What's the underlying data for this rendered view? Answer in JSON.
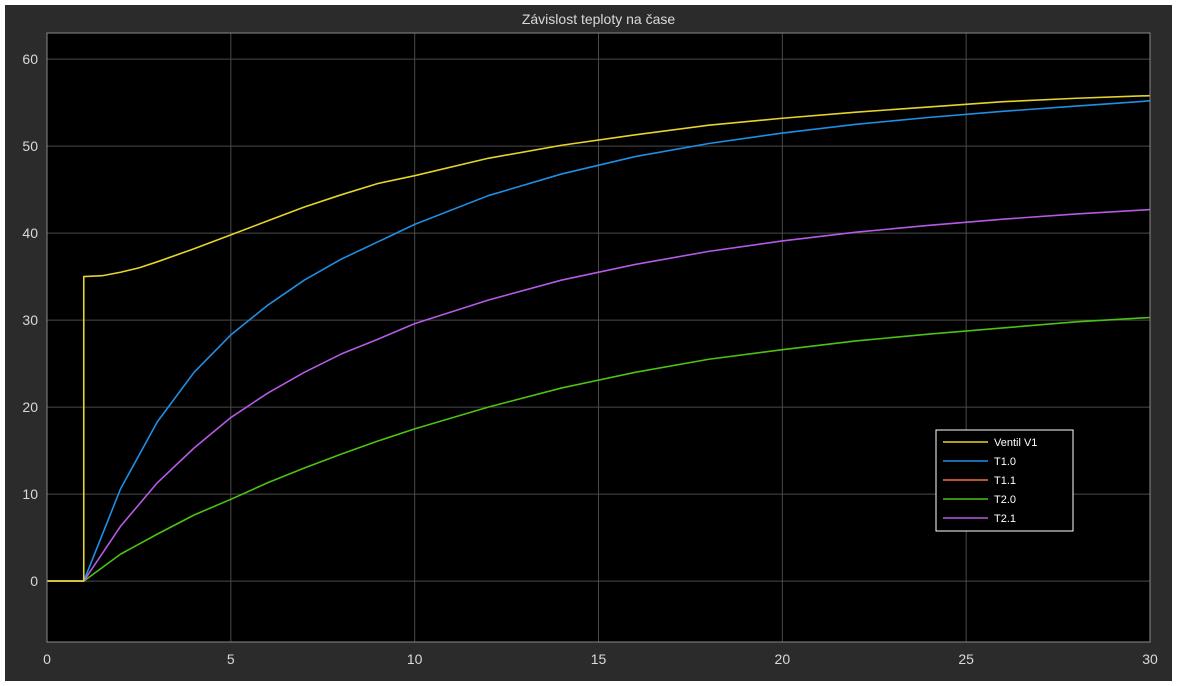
{
  "chart_data": {
    "type": "line",
    "title": "Závislost teploty na čase",
    "xlabel": "",
    "ylabel": "",
    "xlim": [
      0,
      30
    ],
    "ylim": [
      -7,
      63
    ],
    "xticks": [
      0,
      5,
      10,
      15,
      20,
      25,
      30
    ],
    "yticks": [
      0,
      10,
      20,
      30,
      40,
      50,
      60
    ],
    "grid": true,
    "legend_position": "bottom-right",
    "background": "#000000",
    "series": [
      {
        "name": "Ventil V1",
        "color": "#e6d42a",
        "x": [
          0,
          1,
          1,
          1.5,
          2,
          2.5,
          3,
          4,
          5,
          6,
          7,
          8,
          9,
          10,
          12,
          14,
          16,
          18,
          20,
          22,
          24,
          26,
          28,
          30
        ],
        "y": [
          0,
          0,
          35,
          35.1,
          35.5,
          36,
          36.7,
          38.2,
          39.8,
          41.4,
          43,
          44.4,
          45.7,
          46.6,
          48.6,
          50.1,
          51.3,
          52.4,
          53.2,
          53.9,
          54.5,
          55.1,
          55.5,
          55.8
        ]
      },
      {
        "name": "T1.0",
        "color": "#1f8fe5",
        "x": [
          0,
          1,
          2,
          3,
          4,
          5,
          6,
          7,
          8,
          9,
          10,
          12,
          14,
          16,
          18,
          20,
          22,
          24,
          26,
          28,
          30
        ],
        "y": [
          0,
          0,
          10.6,
          18.3,
          24,
          28.3,
          31.7,
          34.6,
          37,
          39,
          41,
          44.3,
          46.8,
          48.8,
          50.3,
          51.5,
          52.5,
          53.3,
          54,
          54.6,
          55.2
        ]
      },
      {
        "name": "T1.1",
        "color": "#ff6a3d",
        "x": [],
        "y": []
      },
      {
        "name": "T2.0",
        "color": "#4cc214",
        "x": [
          0,
          1,
          2,
          3,
          4,
          5,
          6,
          7,
          8,
          9,
          10,
          12,
          14,
          16,
          18,
          20,
          22,
          24,
          26,
          28,
          30
        ],
        "y": [
          0,
          0,
          3.1,
          5.4,
          7.6,
          9.4,
          11.3,
          13,
          14.6,
          16.1,
          17.5,
          20,
          22.2,
          24,
          25.5,
          26.6,
          27.6,
          28.4,
          29.1,
          29.8,
          30.3
        ]
      },
      {
        "name": "T2.1",
        "color": "#b65ae6",
        "x": [
          0,
          1,
          2,
          3,
          4,
          5,
          6,
          7,
          8,
          9,
          10,
          12,
          14,
          16,
          18,
          20,
          22,
          24,
          26,
          28,
          30
        ],
        "y": [
          0,
          0,
          6.3,
          11.3,
          15.3,
          18.8,
          21.6,
          24,
          26.1,
          27.8,
          29.6,
          32.3,
          34.6,
          36.4,
          37.9,
          39.1,
          40.1,
          40.9,
          41.6,
          42.2,
          42.7
        ]
      }
    ]
  }
}
